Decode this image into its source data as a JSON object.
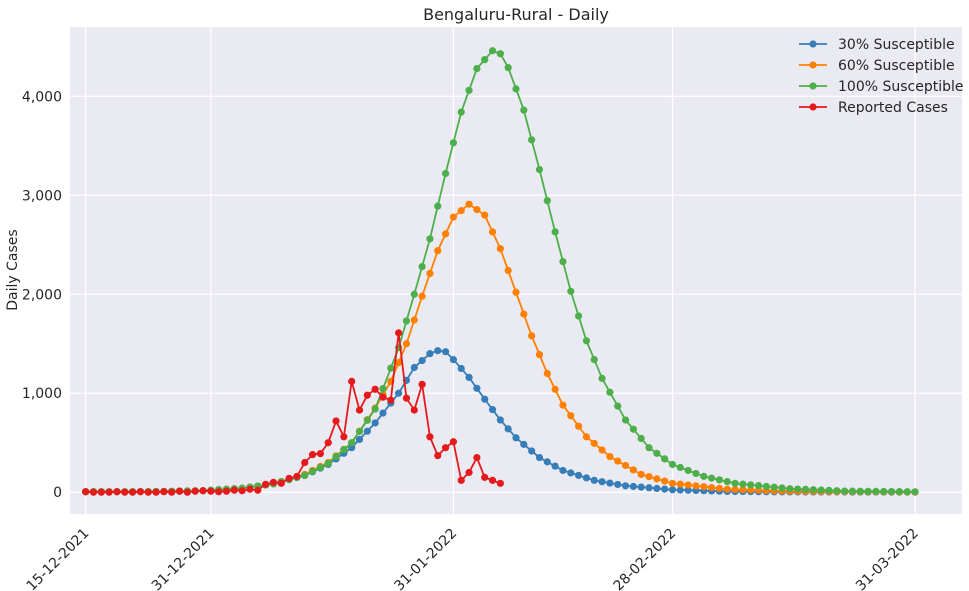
{
  "chart_data": {
    "type": "line",
    "title": "Bengaluru-Rural - Daily",
    "xlabel": "",
    "ylabel": "Daily Cases",
    "x_start": "15-12-2021",
    "x_end": "31-03-2022",
    "xlim": [
      "13-12-2021",
      "06-04-2022"
    ],
    "ylim": [
      -220,
      4700
    ],
    "x_ticks": [
      "15-12-2021",
      "31-12-2021",
      "31-01-2022",
      "28-02-2022",
      "31-03-2022"
    ],
    "y_ticks": [
      0,
      1000,
      2000,
      3000,
      4000
    ],
    "y_tick_labels": [
      "0",
      "1,000",
      "2,000",
      "3,000",
      "4,000"
    ],
    "grid": true,
    "legend_position": "top-right",
    "series": [
      {
        "name": "30% Susceptible",
        "color": "#377eb8",
        "points": [
          [
            "15-12-2021",
            5
          ],
          [
            "20-12-2021",
            5
          ],
          [
            "25-12-2021",
            8
          ],
          [
            "30-12-2021",
            15
          ],
          [
            "04-01-2022",
            40
          ],
          [
            "08-01-2022",
            85
          ],
          [
            "12-01-2022",
            170
          ],
          [
            "15-01-2022",
            280
          ],
          [
            "18-01-2022",
            450
          ],
          [
            "21-01-2022",
            700
          ],
          [
            "24-01-2022",
            1000
          ],
          [
            "26-01-2022",
            1260
          ],
          [
            "28-01-2022",
            1400
          ],
          [
            "29-01-2022",
            1430
          ],
          [
            "30-01-2022",
            1420
          ],
          [
            "31-01-2022",
            1340
          ],
          [
            "02-02-2022",
            1160
          ],
          [
            "04-02-2022",
            940
          ],
          [
            "06-02-2022",
            730
          ],
          [
            "08-02-2022",
            550
          ],
          [
            "11-02-2022",
            350
          ],
          [
            "14-02-2022",
            220
          ],
          [
            "18-02-2022",
            120
          ],
          [
            "22-02-2022",
            65
          ],
          [
            "28-02-2022",
            25
          ],
          [
            "07-03-2022",
            8
          ],
          [
            "15-03-2022",
            3
          ],
          [
            "31-03-2022",
            1
          ]
        ]
      },
      {
        "name": "60% Susceptible",
        "color": "#ff7f00",
        "points": [
          [
            "15-12-2021",
            5
          ],
          [
            "20-12-2021",
            5
          ],
          [
            "25-12-2021",
            8
          ],
          [
            "30-12-2021",
            15
          ],
          [
            "04-01-2022",
            40
          ],
          [
            "08-01-2022",
            85
          ],
          [
            "12-01-2022",
            180
          ],
          [
            "15-01-2022",
            300
          ],
          [
            "18-01-2022",
            500
          ],
          [
            "21-01-2022",
            850
          ],
          [
            "23-01-2022",
            1120
          ],
          [
            "25-01-2022",
            1500
          ],
          [
            "27-01-2022",
            1980
          ],
          [
            "29-01-2022",
            2440
          ],
          [
            "31-01-2022",
            2780
          ],
          [
            "02-02-2022",
            2910
          ],
          [
            "04-02-2022",
            2800
          ],
          [
            "06-02-2022",
            2460
          ],
          [
            "08-02-2022",
            2020
          ],
          [
            "10-02-2022",
            1580
          ],
          [
            "12-02-2022",
            1200
          ],
          [
            "14-02-2022",
            880
          ],
          [
            "17-02-2022",
            560
          ],
          [
            "20-02-2022",
            360
          ],
          [
            "24-02-2022",
            180
          ],
          [
            "28-02-2022",
            90
          ],
          [
            "07-03-2022",
            30
          ],
          [
            "15-03-2022",
            10
          ],
          [
            "31-03-2022",
            2
          ]
        ]
      },
      {
        "name": "100% Susceptible",
        "color": "#4daf4a",
        "points": [
          [
            "15-12-2021",
            5
          ],
          [
            "20-12-2021",
            5
          ],
          [
            "25-12-2021",
            8
          ],
          [
            "30-12-2021",
            15
          ],
          [
            "04-01-2022",
            40
          ],
          [
            "08-01-2022",
            85
          ],
          [
            "12-01-2022",
            170
          ],
          [
            "15-01-2022",
            290
          ],
          [
            "18-01-2022",
            500
          ],
          [
            "21-01-2022",
            840
          ],
          [
            "24-01-2022",
            1460
          ],
          [
            "26-01-2022",
            2000
          ],
          [
            "28-01-2022",
            2560
          ],
          [
            "30-01-2022",
            3220
          ],
          [
            "01-02-2022",
            3840
          ],
          [
            "03-02-2022",
            4280
          ],
          [
            "05-02-2022",
            4460
          ],
          [
            "06-02-2022",
            4430
          ],
          [
            "07-02-2022",
            4290
          ],
          [
            "09-02-2022",
            3860
          ],
          [
            "11-02-2022",
            3260
          ],
          [
            "13-02-2022",
            2630
          ],
          [
            "15-02-2022",
            2030
          ],
          [
            "17-02-2022",
            1530
          ],
          [
            "19-02-2022",
            1150
          ],
          [
            "22-02-2022",
            730
          ],
          [
            "25-02-2022",
            450
          ],
          [
            "28-02-2022",
            280
          ],
          [
            "04-03-2022",
            160
          ],
          [
            "08-03-2022",
            90
          ],
          [
            "15-03-2022",
            35
          ],
          [
            "22-03-2022",
            12
          ],
          [
            "31-03-2022",
            4
          ]
        ]
      },
      {
        "name": "Reported Cases",
        "color": "#e41a1c",
        "points": [
          [
            "15-12-2021",
            5
          ],
          [
            "16-12-2021",
            0
          ],
          [
            "17-12-2021",
            0
          ],
          [
            "18-12-2021",
            0
          ],
          [
            "19-12-2021",
            5
          ],
          [
            "20-12-2021",
            0
          ],
          [
            "21-12-2021",
            0
          ],
          [
            "22-12-2021",
            5
          ],
          [
            "23-12-2021",
            0
          ],
          [
            "24-12-2021",
            0
          ],
          [
            "25-12-2021",
            5
          ],
          [
            "26-12-2021",
            0
          ],
          [
            "27-12-2021",
            10
          ],
          [
            "28-12-2021",
            0
          ],
          [
            "29-12-2021",
            10
          ],
          [
            "30-12-2021",
            15
          ],
          [
            "31-12-2021",
            10
          ],
          [
            "01-01-2022",
            5
          ],
          [
            "02-01-2022",
            10
          ],
          [
            "03-01-2022",
            20
          ],
          [
            "04-01-2022",
            15
          ],
          [
            "05-01-2022",
            30
          ],
          [
            "06-01-2022",
            20
          ],
          [
            "07-01-2022",
            80
          ],
          [
            "08-01-2022",
            100
          ],
          [
            "09-01-2022",
            90
          ],
          [
            "10-01-2022",
            140
          ],
          [
            "11-01-2022",
            160
          ],
          [
            "12-01-2022",
            300
          ],
          [
            "13-01-2022",
            380
          ],
          [
            "14-01-2022",
            390
          ],
          [
            "15-01-2022",
            500
          ],
          [
            "16-01-2022",
            720
          ],
          [
            "17-01-2022",
            560
          ],
          [
            "18-01-2022",
            1120
          ],
          [
            "19-01-2022",
            830
          ],
          [
            "20-01-2022",
            980
          ],
          [
            "21-01-2022",
            1040
          ],
          [
            "22-01-2022",
            960
          ],
          [
            "23-01-2022",
            930
          ],
          [
            "24-01-2022",
            1610
          ],
          [
            "25-01-2022",
            950
          ],
          [
            "26-01-2022",
            830
          ],
          [
            "27-01-2022",
            1090
          ],
          [
            "28-01-2022",
            560
          ],
          [
            "29-01-2022",
            370
          ],
          [
            "30-01-2022",
            450
          ],
          [
            "31-01-2022",
            510
          ],
          [
            "01-02-2022",
            120
          ],
          [
            "02-02-2022",
            200
          ],
          [
            "03-02-2022",
            350
          ],
          [
            "04-02-2022",
            150
          ],
          [
            "05-02-2022",
            120
          ],
          [
            "06-02-2022",
            90
          ]
        ]
      }
    ]
  }
}
